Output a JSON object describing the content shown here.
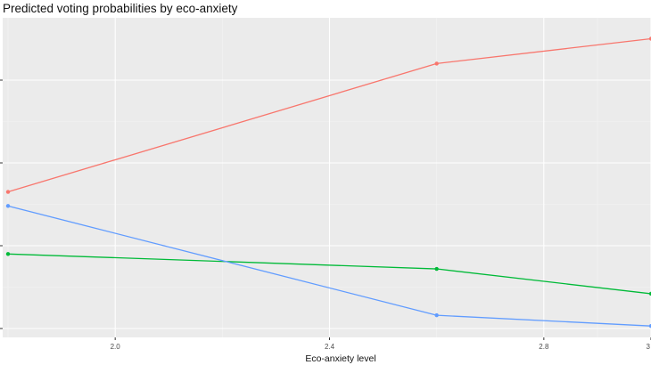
{
  "chart_data": {
    "type": "line",
    "title": "Predicted voting probabilities by eco-anxiety",
    "xlabel": "Eco-anxiety level",
    "ylabel": "",
    "x": [
      1.8,
      2.6,
      3.0
    ],
    "x_ticks": [
      2.0,
      2.4,
      2.8,
      3.0
    ],
    "x_tick_labels": [
      "2.0",
      "2.4",
      "2.8",
      "3"
    ],
    "xlim": [
      1.79,
      3.0
    ],
    "ylim": [
      0.0,
      3.05
    ],
    "y_ticks": [
      0.0,
      1.0,
      2.0,
      3.0
    ],
    "grid": true,
    "legend": "none",
    "series": [
      {
        "color": "#F8766D",
        "values": [
          1.65,
          3.2,
          3.5
        ]
      },
      {
        "color": "#00BA38",
        "values": [
          0.9,
          0.72,
          0.42
        ]
      },
      {
        "color": "#619CFF",
        "values": [
          1.48,
          0.16,
          0.03
        ]
      }
    ],
    "colors": {
      "panel_background": "#EBEBEB",
      "grid_major": "#FFFFFF",
      "grid_minor": "#F4F4F4"
    }
  }
}
